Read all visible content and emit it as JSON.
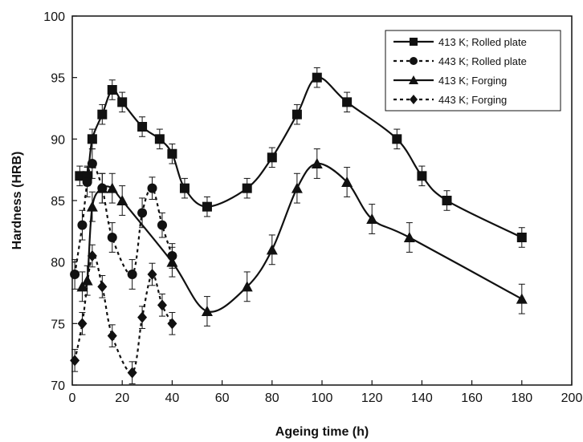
{
  "chart_data": {
    "type": "line",
    "title": "",
    "xlabel": "Ageing time (h)",
    "ylabel": "Hardness (HRB)",
    "xlim": [
      0,
      200
    ],
    "ylim": [
      70,
      100
    ],
    "xticks": [
      0,
      20,
      40,
      60,
      80,
      100,
      120,
      140,
      160,
      180,
      200
    ],
    "yticks": [
      70,
      75,
      80,
      85,
      90,
      95,
      100
    ],
    "grid": false,
    "legend_position": "top-right",
    "series": [
      {
        "name": "413 K; Rolled plate",
        "marker": "square",
        "line": "solid",
        "points": [
          [
            3,
            87
          ],
          [
            6,
            87
          ],
          [
            8,
            90
          ],
          [
            12,
            92
          ],
          [
            16,
            94
          ],
          [
            20,
            93
          ],
          [
            28,
            91
          ],
          [
            35,
            90
          ],
          [
            40,
            88.8
          ],
          [
            45,
            86
          ],
          [
            54,
            84.5
          ],
          [
            70,
            86
          ],
          [
            80,
            88.5
          ],
          [
            90,
            92
          ],
          [
            98,
            95
          ],
          [
            110,
            93
          ],
          [
            130,
            90
          ],
          [
            140,
            87
          ],
          [
            150,
            85
          ],
          [
            180,
            82
          ]
        ],
        "errors": [
          0.8,
          0.8,
          0.8,
          0.8,
          0.8,
          0.8,
          0.8,
          0.8,
          0.8,
          0.8,
          0.8,
          0.8,
          0.8,
          0.8,
          0.8,
          0.8,
          0.8,
          0.8,
          0.8,
          0.8
        ]
      },
      {
        "name": "443 K; Rolled plate",
        "marker": "circle",
        "line": "dotted",
        "points": [
          [
            1,
            79
          ],
          [
            4,
            83
          ],
          [
            6,
            86.5
          ],
          [
            8,
            88
          ],
          [
            12,
            86
          ],
          [
            16,
            82
          ],
          [
            24,
            79
          ],
          [
            28,
            84
          ],
          [
            32,
            86
          ],
          [
            36,
            83
          ],
          [
            40,
            80.5
          ]
        ],
        "errors": [
          1.2,
          1.2,
          1.2,
          1.2,
          1.2,
          1.2,
          1.2,
          1.2,
          0.9,
          1.0,
          1.0
        ]
      },
      {
        "name": "413 K; Forging",
        "marker": "triangle",
        "line": "solid",
        "points": [
          [
            4,
            78
          ],
          [
            6,
            78.5
          ],
          [
            8,
            84.5
          ],
          [
            12,
            86
          ],
          [
            16,
            86
          ],
          [
            20,
            85
          ],
          [
            40,
            80
          ],
          [
            54,
            76
          ],
          [
            70,
            78
          ],
          [
            80,
            81
          ],
          [
            90,
            86
          ],
          [
            98,
            88
          ],
          [
            110,
            86.5
          ],
          [
            120,
            83.5
          ],
          [
            135,
            82
          ],
          [
            180,
            77
          ]
        ],
        "errors": [
          1.2,
          1.2,
          1.2,
          1.2,
          1.2,
          1.2,
          1.2,
          1.2,
          1.2,
          1.2,
          1.2,
          1.2,
          1.2,
          1.2,
          1.2,
          1.2
        ]
      },
      {
        "name": "443 K; Forging",
        "marker": "diamond",
        "line": "dotted",
        "points": [
          [
            1,
            72
          ],
          [
            4,
            75
          ],
          [
            8,
            80.5
          ],
          [
            12,
            78
          ],
          [
            16,
            74
          ],
          [
            24,
            71
          ],
          [
            28,
            75.5
          ],
          [
            32,
            79
          ],
          [
            36,
            76.5
          ],
          [
            40,
            75
          ]
        ],
        "errors": [
          0.9,
          0.9,
          0.9,
          0.9,
          0.9,
          0.9,
          0.9,
          0.9,
          0.9,
          0.9
        ]
      }
    ]
  }
}
